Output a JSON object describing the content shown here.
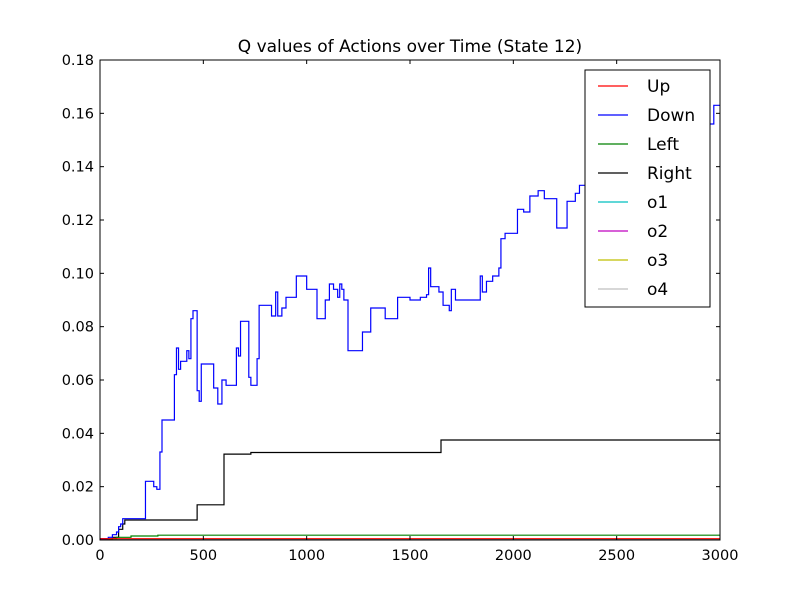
{
  "chart_data": {
    "type": "line",
    "title": "Q values of Actions over Time (State 12)",
    "xlabel": "",
    "ylabel": "",
    "xlim": [
      0,
      3000
    ],
    "ylim": [
      0,
      0.18
    ],
    "x_ticks": [
      "0",
      "500",
      "1000",
      "1500",
      "2000",
      "2500",
      "3000"
    ],
    "y_ticks": [
      "0.00",
      "0.02",
      "0.04",
      "0.06",
      "0.08",
      "0.10",
      "0.12",
      "0.14",
      "0.16",
      "0.18"
    ],
    "grid": false,
    "legend_position": "top-right",
    "series": [
      {
        "name": "Up",
        "color": "#ff0000",
        "step": true,
        "points": [
          [
            0,
            0.0005
          ],
          [
            3000,
            0.0005
          ]
        ]
      },
      {
        "name": "Down",
        "color": "#0000ff",
        "step": true,
        "points": [
          [
            0,
            0.0005
          ],
          [
            40,
            0.001
          ],
          [
            60,
            0.002
          ],
          [
            80,
            0.003
          ],
          [
            90,
            0.005
          ],
          [
            100,
            0.006
          ],
          [
            110,
            0.008
          ],
          [
            160,
            0.008
          ],
          [
            220,
            0.022
          ],
          [
            260,
            0.02
          ],
          [
            275,
            0.019
          ],
          [
            290,
            0.033
          ],
          [
            300,
            0.045
          ],
          [
            360,
            0.062
          ],
          [
            370,
            0.072
          ],
          [
            380,
            0.064
          ],
          [
            390,
            0.067
          ],
          [
            410,
            0.067
          ],
          [
            420,
            0.071
          ],
          [
            430,
            0.068
          ],
          [
            440,
            0.083
          ],
          [
            450,
            0.086
          ],
          [
            470,
            0.056
          ],
          [
            480,
            0.052
          ],
          [
            490,
            0.066
          ],
          [
            550,
            0.057
          ],
          [
            570,
            0.051
          ],
          [
            590,
            0.06
          ],
          [
            610,
            0.058
          ],
          [
            660,
            0.072
          ],
          [
            670,
            0.069
          ],
          [
            680,
            0.082
          ],
          [
            720,
            0.061
          ],
          [
            730,
            0.058
          ],
          [
            760,
            0.068
          ],
          [
            770,
            0.088
          ],
          [
            830,
            0.084
          ],
          [
            850,
            0.093
          ],
          [
            860,
            0.084
          ],
          [
            880,
            0.087
          ],
          [
            900,
            0.091
          ],
          [
            950,
            0.099
          ],
          [
            1000,
            0.094
          ],
          [
            1050,
            0.083
          ],
          [
            1090,
            0.09
          ],
          [
            1110,
            0.096
          ],
          [
            1130,
            0.094
          ],
          [
            1150,
            0.091
          ],
          [
            1160,
            0.096
          ],
          [
            1170,
            0.094
          ],
          [
            1180,
            0.09
          ],
          [
            1200,
            0.071
          ],
          [
            1270,
            0.078
          ],
          [
            1310,
            0.087
          ],
          [
            1380,
            0.083
          ],
          [
            1440,
            0.091
          ],
          [
            1500,
            0.09
          ],
          [
            1550,
            0.091
          ],
          [
            1580,
            0.092
          ],
          [
            1590,
            0.102
          ],
          [
            1600,
            0.095
          ],
          [
            1640,
            0.093
          ],
          [
            1660,
            0.088
          ],
          [
            1690,
            0.086
          ],
          [
            1700,
            0.094
          ],
          [
            1720,
            0.09
          ],
          [
            1840,
            0.099
          ],
          [
            1850,
            0.093
          ],
          [
            1870,
            0.097
          ],
          [
            1900,
            0.099
          ],
          [
            1930,
            0.102
          ],
          [
            1940,
            0.113
          ],
          [
            1960,
            0.115
          ],
          [
            2020,
            0.124
          ],
          [
            2050,
            0.123
          ],
          [
            2080,
            0.129
          ],
          [
            2120,
            0.131
          ],
          [
            2150,
            0.128
          ],
          [
            2210,
            0.117
          ],
          [
            2260,
            0.127
          ],
          [
            2300,
            0.13
          ],
          [
            2320,
            0.133
          ],
          [
            2360,
            0.138
          ],
          [
            2520,
            0.14
          ],
          [
            2700,
            0.145
          ],
          [
            2940,
            0.156
          ],
          [
            2970,
            0.163
          ],
          [
            3000,
            0.163
          ]
        ]
      },
      {
        "name": "Left",
        "color": "#008000",
        "step": true,
        "points": [
          [
            0,
            0.0005
          ],
          [
            80,
            0.001
          ],
          [
            150,
            0.0015
          ],
          [
            280,
            0.0018
          ],
          [
            3000,
            0.0018
          ]
        ]
      },
      {
        "name": "Right",
        "color": "#000000",
        "step": true,
        "points": [
          [
            0,
            0.0003
          ],
          [
            60,
            0.001
          ],
          [
            90,
            0.004
          ],
          [
            110,
            0.006
          ],
          [
            120,
            0.0075
          ],
          [
            460,
            0.0075
          ],
          [
            470,
            0.0132
          ],
          [
            590,
            0.0132
          ],
          [
            600,
            0.0322
          ],
          [
            720,
            0.0322
          ],
          [
            730,
            0.0328
          ],
          [
            1640,
            0.0328
          ],
          [
            1650,
            0.0375
          ],
          [
            3000,
            0.0375
          ]
        ]
      },
      {
        "name": "o1",
        "color": "#00bfbf",
        "step": true,
        "points": [
          [
            0,
            0.0002
          ],
          [
            3000,
            0.0002
          ]
        ]
      },
      {
        "name": "o2",
        "color": "#bf00bf",
        "step": true,
        "points": [
          [
            0,
            0.0002
          ],
          [
            3000,
            0.0002
          ]
        ]
      },
      {
        "name": "o3",
        "color": "#bfbf00",
        "step": true,
        "points": [
          [
            0,
            0.0001
          ],
          [
            3000,
            0.0001
          ]
        ]
      },
      {
        "name": "o4",
        "color": "#bfbfbf",
        "step": true,
        "points": [
          [
            0,
            0.0001
          ],
          [
            3000,
            0.0001
          ]
        ]
      }
    ]
  }
}
